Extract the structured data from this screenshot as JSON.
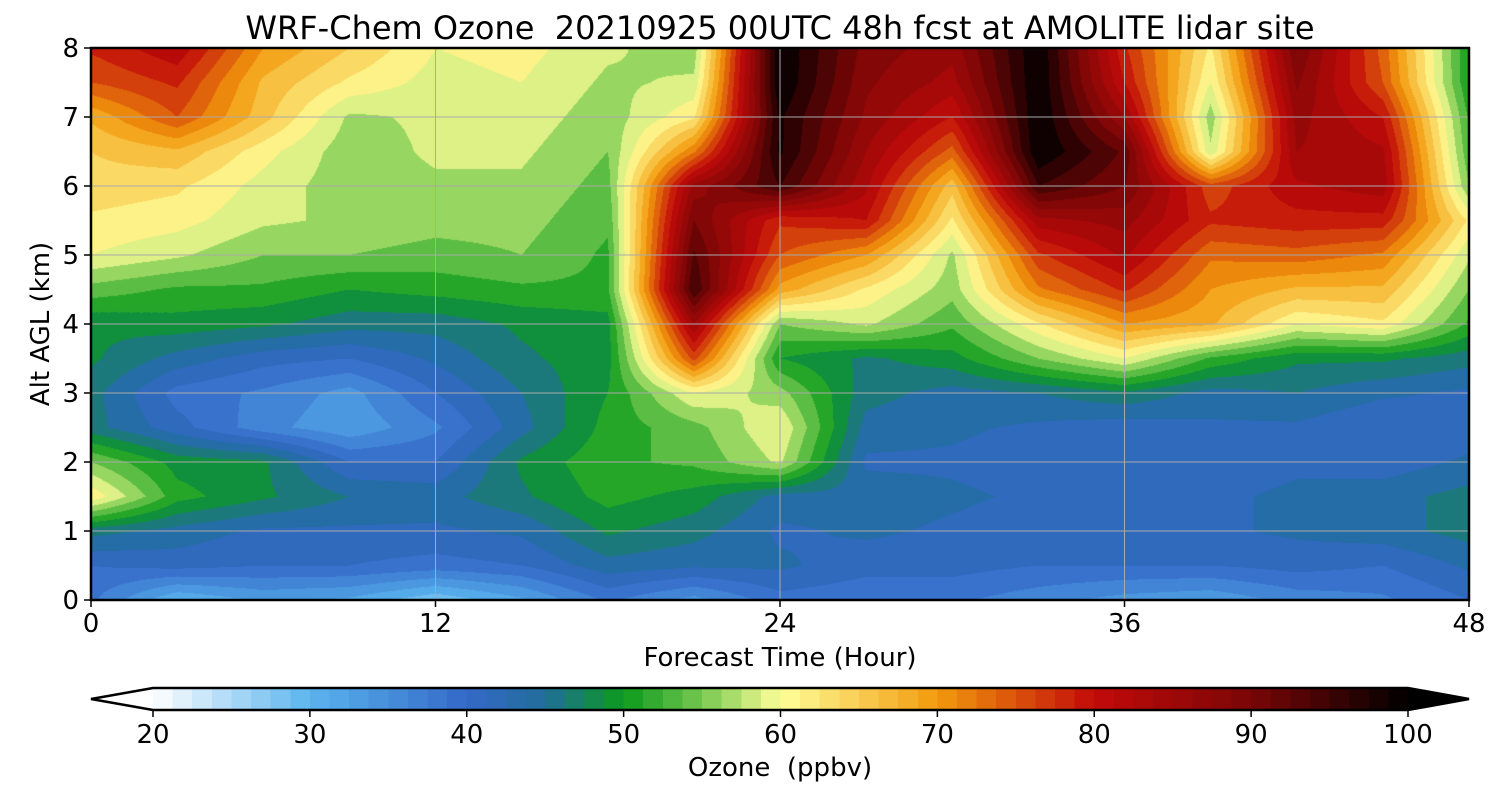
{
  "chart_data": {
    "type": "heatmap",
    "title": "WRF-Chem Ozone  20210925 00UTC 48h fcst at AMOLITE lidar site",
    "xlabel": "Forecast Time (Hour)",
    "ylabel": "Alt AGL (km)",
    "xlim": [
      0,
      48
    ],
    "ylim": [
      0,
      8
    ],
    "xticks": [
      "0",
      "12",
      "24",
      "36",
      "48"
    ],
    "yticks": [
      "0",
      "1",
      "2",
      "3",
      "4",
      "5",
      "6",
      "7",
      "8"
    ],
    "grid": true,
    "colorbar": {
      "label": "Ozone  (ppbv)",
      "range": [
        20,
        100
      ],
      "ticks": [
        "20",
        "30",
        "40",
        "50",
        "60",
        "70",
        "80",
        "90",
        "100"
      ],
      "extend": "both",
      "stops": [
        {
          "value": 20,
          "color": "#ffffff"
        },
        {
          "value": 30,
          "color": "#5ab4ee"
        },
        {
          "value": 40,
          "color": "#3468c8"
        },
        {
          "value": 45,
          "color": "#206e9a"
        },
        {
          "value": 50,
          "color": "#0b9a1c"
        },
        {
          "value": 55,
          "color": "#76c850"
        },
        {
          "value": 60,
          "color": "#ffff99"
        },
        {
          "value": 70,
          "color": "#f29a0c"
        },
        {
          "value": 80,
          "color": "#c20a0a"
        },
        {
          "value": 90,
          "color": "#7a0606"
        },
        {
          "value": 100,
          "color": "#000000"
        }
      ]
    },
    "altitudes_km": [
      0,
      0.5,
      1,
      1.5,
      2,
      2.5,
      3,
      3.5,
      4,
      4.5,
      5,
      5.5,
      6,
      6.5,
      7,
      7.5,
      8
    ],
    "times_h": [
      0,
      3,
      6,
      9,
      12,
      15,
      18,
      21,
      24,
      27,
      30,
      33,
      36,
      39,
      42,
      45,
      48
    ],
    "values_ppbv": [
      [
        38,
        30,
        33,
        32,
        28,
        32,
        38,
        34,
        39,
        38,
        38,
        36,
        34,
        33,
        36,
        37,
        40
      ],
      [
        40,
        41,
        40,
        40,
        39,
        40,
        44,
        43,
        43,
        41,
        41,
        40,
        40,
        40,
        41,
        40,
        43
      ],
      [
        46,
        44,
        42,
        42,
        42,
        43,
        48,
        46,
        42,
        43,
        42,
        41,
        42,
        42,
        43,
        44,
        46
      ],
      [
        62,
        51,
        48,
        45,
        44,
        47,
        51,
        49,
        44,
        44,
        43,
        42,
        41,
        42,
        43,
        44,
        46
      ],
      [
        55,
        49,
        48,
        40,
        40,
        48,
        52,
        53,
        58,
        42,
        42,
        41,
        41,
        41,
        42,
        41,
        43
      ],
      [
        46,
        41,
        36,
        33,
        37,
        44,
        51,
        54,
        60,
        44,
        43,
        42,
        41,
        42,
        42,
        40,
        41
      ],
      [
        46,
        39,
        37,
        34,
        40,
        45,
        50,
        60,
        56,
        46,
        44,
        45,
        47,
        44,
        45,
        43,
        42
      ],
      [
        48,
        44,
        41,
        40,
        43,
        47,
        49,
        76,
        50,
        47,
        49,
        55,
        60,
        52,
        48,
        48,
        46
      ],
      [
        48,
        49,
        48,
        46,
        46,
        48,
        49,
        85,
        55,
        58,
        53,
        62,
        70,
        68,
        60,
        62,
        52
      ],
      [
        54,
        52,
        52,
        50,
        51,
        52,
        52,
        95,
        69,
        62,
        56,
        72,
        78,
        70,
        67,
        67,
        55
      ],
      [
        60,
        58,
        55,
        55,
        54,
        55,
        52,
        93,
        75,
        70,
        57,
        77,
        83,
        73,
        74,
        72,
        58
      ],
      [
        62,
        61,
        58,
        57,
        56,
        56,
        53,
        90,
        78,
        80,
        62,
        84,
        86,
        78,
        79,
        79,
        62
      ],
      [
        64,
        63,
        59,
        56,
        57,
        57,
        54,
        86,
        95,
        83,
        66,
        95,
        90,
        76,
        82,
        84,
        55
      ],
      [
        65,
        67,
        61,
        56,
        58,
        58,
        55,
        72,
        98,
        85,
        74,
        100,
        92,
        58,
        85,
        83,
        53
      ],
      [
        68,
        75,
        66,
        57,
        58,
        59,
        56,
        62,
        98,
        87,
        80,
        100,
        85,
        56,
        86,
        80,
        52
      ],
      [
        75,
        78,
        67,
        62,
        59,
        60,
        57,
        58,
        100,
        88,
        84,
        100,
        80,
        60,
        88,
        75,
        50
      ],
      [
        78,
        82,
        70,
        65,
        60,
        61,
        58,
        56,
        100,
        89,
        86,
        100,
        78,
        62,
        90,
        74,
        50
      ]
    ]
  }
}
